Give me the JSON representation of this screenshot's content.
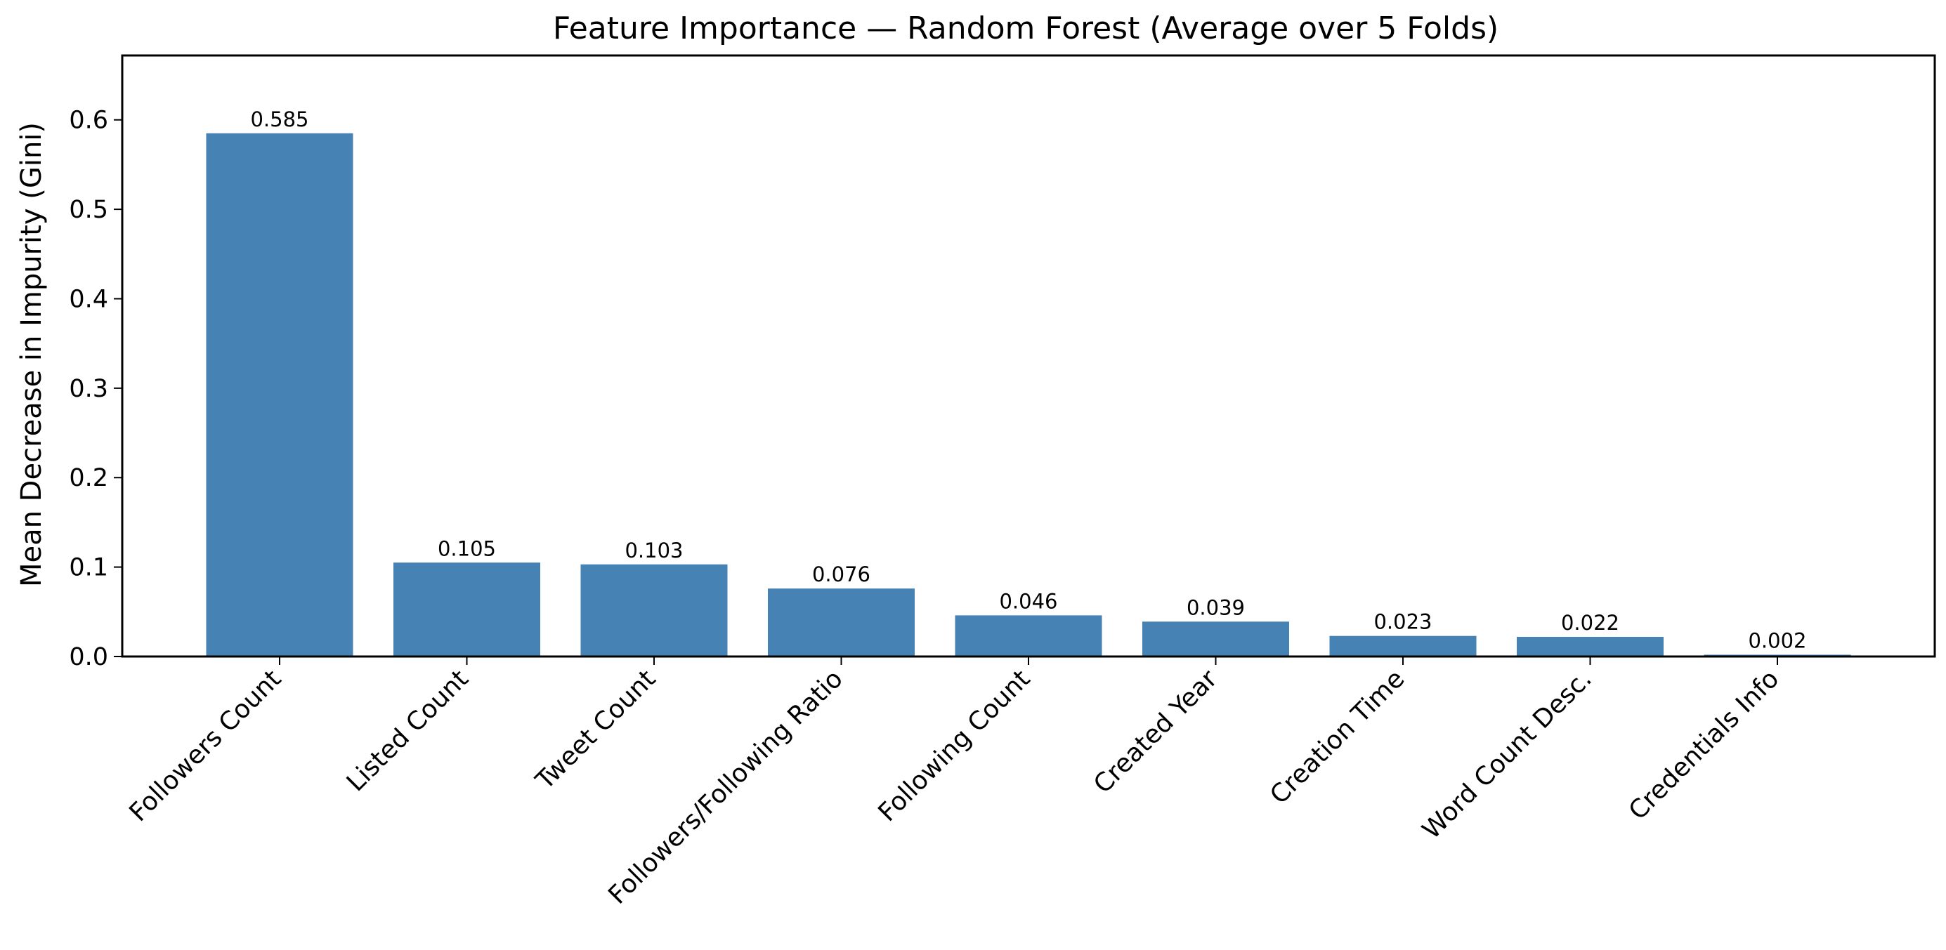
{
  "chart_data": {
    "type": "bar",
    "title": "Feature Importance — Random Forest (Average over 5 Folds)",
    "xlabel": "",
    "ylabel": "Mean Decrease in Impurity (Gini)",
    "ylim": [
      0,
      0.672
    ],
    "yticks": [
      0.0,
      0.1,
      0.2,
      0.3,
      0.4,
      0.5,
      0.6
    ],
    "ytick_labels": [
      "0.0",
      "0.1",
      "0.2",
      "0.3",
      "0.4",
      "0.5",
      "0.6"
    ],
    "categories": [
      "Followers Count",
      "Listed Count",
      "Tweet Count",
      "Followers/Following Ratio",
      "Following Count",
      "Created Year",
      "Creation Time",
      "Word Count Desc.",
      "Credentials Info"
    ],
    "values": [
      0.585,
      0.105,
      0.103,
      0.076,
      0.046,
      0.039,
      0.023,
      0.022,
      0.002
    ],
    "data_labels": [
      "0.585",
      "0.105",
      "0.103",
      "0.076",
      "0.046",
      "0.039",
      "0.023",
      "0.022",
      "0.002"
    ],
    "bar_color": "#4682b4",
    "grid": false,
    "legend": "none"
  }
}
